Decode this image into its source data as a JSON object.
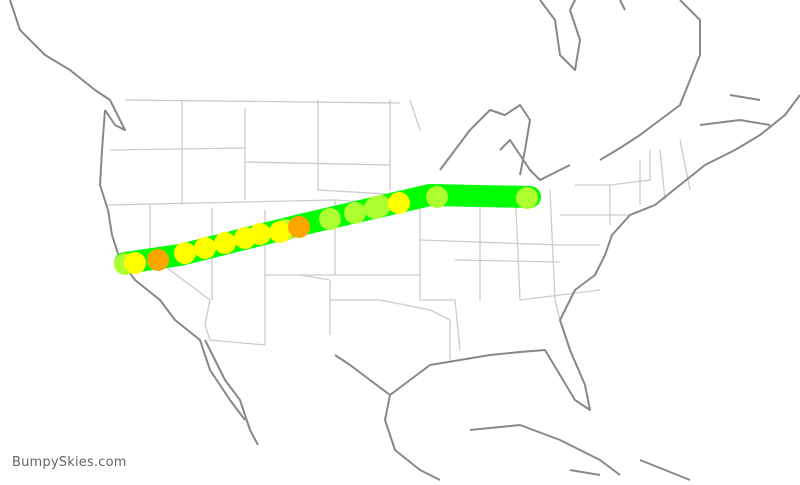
{
  "watermark": "BumpySkies.com",
  "colors": {
    "smooth": "#00ff00",
    "light": "#adff2f",
    "moderate": "#ffff00",
    "heavy": "#ffa500",
    "coast": "#888888",
    "state_border": "#cccccc"
  },
  "route": {
    "markers": [
      "light",
      "moderate",
      "heavy",
      "moderate",
      "moderate",
      "moderate",
      "moderate",
      "moderate",
      "light",
      "moderate",
      "heavy",
      "light",
      "light",
      "light",
      "light",
      "moderate",
      "light",
      "light"
    ]
  }
}
